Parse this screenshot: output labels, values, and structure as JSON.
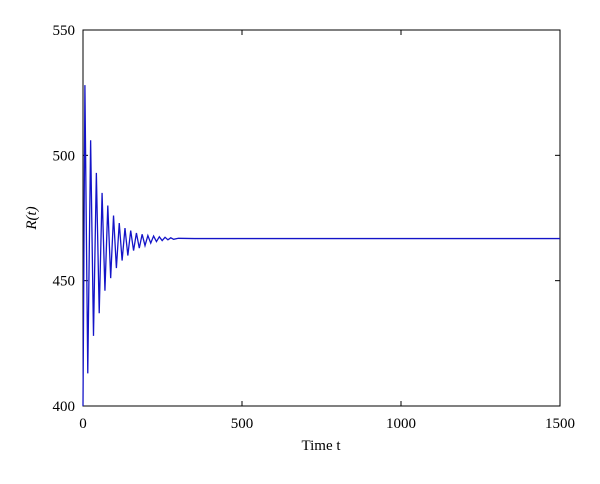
{
  "chart_data": {
    "type": "line",
    "xlabel": "Time t",
    "ylabel": "R(t)",
    "x": [
      0,
      6,
      15,
      24,
      33,
      42,
      51,
      60,
      69,
      78,
      87,
      96,
      105,
      114,
      123,
      132,
      141,
      150,
      159,
      168,
      177,
      186,
      195,
      204,
      213,
      222,
      231,
      240,
      249,
      258,
      267,
      276,
      285,
      300,
      350,
      400,
      470,
      1500
    ],
    "series": [
      {
        "color": "#1414c8",
        "values": [
          400,
          528,
          413,
          506,
          428,
          493,
          437,
          485,
          446,
          480,
          451,
          476,
          455,
          473,
          458,
          471,
          460,
          470,
          462,
          469,
          463,
          468.5,
          464,
          468,
          465,
          467.8,
          465.6,
          467.5,
          466,
          467.3,
          466.3,
          467.1,
          466.5,
          466.9,
          466.8,
          466.8,
          466.8,
          466.8
        ]
      }
    ],
    "xlim": [
      0,
      1500
    ],
    "xticks": [
      0,
      500,
      1000,
      1500
    ],
    "ylim": [
      400,
      550
    ],
    "yticks": [
      400,
      450,
      500,
      550
    ],
    "grid": false
  }
}
